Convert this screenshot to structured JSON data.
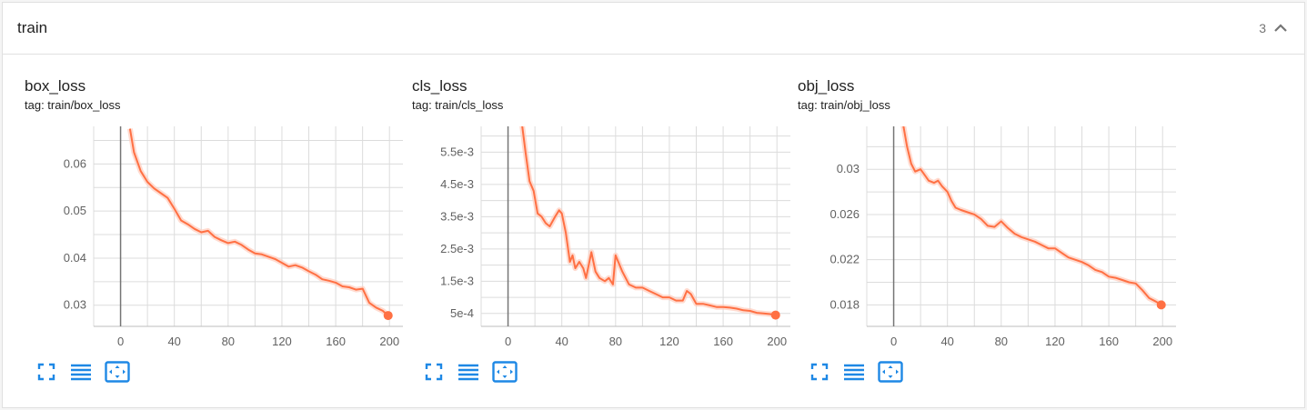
{
  "panel": {
    "title": "train",
    "count": "3"
  },
  "colors": {
    "line": "#ff7043",
    "smooth_band": "#ffccbc",
    "grid": "#dcdcdc",
    "axis": "#757575",
    "icon": "#1e88e5"
  },
  "icons": {
    "fit": "fit-domain-icon",
    "lines": "toggle-lines-icon",
    "expand": "expand-icon",
    "collapse": "chevron-up-icon"
  },
  "chart_data": [
    {
      "type": "line",
      "title": "box_loss",
      "tag": "tag: train/box_loss",
      "xlim": [
        -20,
        210
      ],
      "ylim": [
        0.0255,
        0.068
      ],
      "xticks": [
        0,
        40,
        80,
        120,
        160,
        200
      ],
      "yticks": [
        0.03,
        0.04,
        0.05,
        0.06
      ],
      "ytick_labels": [
        "0.03",
        "0.04",
        "0.05",
        "0.06"
      ],
      "x": [
        7,
        10,
        15,
        20,
        25,
        30,
        35,
        40,
        45,
        50,
        55,
        60,
        65,
        70,
        75,
        80,
        85,
        90,
        95,
        100,
        105,
        110,
        115,
        120,
        125,
        130,
        135,
        140,
        145,
        150,
        155,
        160,
        165,
        170,
        175,
        180,
        185,
        190,
        195,
        199
      ],
      "y": [
        0.0675,
        0.0625,
        0.0585,
        0.0562,
        0.0548,
        0.0538,
        0.0528,
        0.0505,
        0.048,
        0.0472,
        0.0462,
        0.0455,
        0.0458,
        0.0445,
        0.0438,
        0.0432,
        0.0435,
        0.0428,
        0.0418,
        0.041,
        0.0408,
        0.0403,
        0.0398,
        0.039,
        0.0382,
        0.0385,
        0.038,
        0.0372,
        0.0365,
        0.0355,
        0.0352,
        0.0348,
        0.034,
        0.0338,
        0.0333,
        0.0335,
        0.0305,
        0.0295,
        0.0288,
        0.0278
      ]
    },
    {
      "type": "line",
      "title": "cls_loss",
      "tag": "tag: train/cls_loss",
      "xlim": [
        -20,
        210
      ],
      "ylim": [
        0.0001,
        0.0063
      ],
      "xticks": [
        0,
        40,
        80,
        120,
        160,
        200
      ],
      "yticks": [
        0.0005,
        0.0015,
        0.0025,
        0.0035,
        0.0045,
        0.0055
      ],
      "ytick_labels": [
        "5e-4",
        "1.5e-3",
        "2.5e-3",
        "3.5e-3",
        "4.5e-3",
        "5.5e-3"
      ],
      "x": [
        10,
        13,
        16,
        19,
        22,
        25,
        28,
        31,
        35,
        38,
        40,
        43,
        46,
        48,
        50,
        53,
        56,
        58,
        62,
        65,
        68,
        72,
        75,
        78,
        80,
        85,
        90,
        95,
        100,
        105,
        110,
        115,
        120,
        125,
        130,
        133,
        136,
        140,
        145,
        150,
        155,
        160,
        165,
        170,
        175,
        180,
        185,
        190,
        195,
        199
      ],
      "y": [
        0.0065,
        0.0055,
        0.0046,
        0.0043,
        0.0036,
        0.0035,
        0.0033,
        0.0032,
        0.0035,
        0.0037,
        0.0036,
        0.003,
        0.0021,
        0.0023,
        0.0019,
        0.0021,
        0.0019,
        0.0016,
        0.0024,
        0.0018,
        0.0016,
        0.0015,
        0.0016,
        0.0014,
        0.0023,
        0.0018,
        0.0014,
        0.0013,
        0.0013,
        0.0012,
        0.0011,
        0.001,
        0.001,
        0.0009,
        0.0009,
        0.0012,
        0.0011,
        0.0008,
        0.0008,
        0.00075,
        0.0007,
        0.0007,
        0.00068,
        0.00065,
        0.0006,
        0.00058,
        0.00052,
        0.0005,
        0.00048,
        0.00045
      ]
    },
    {
      "type": "line",
      "title": "obj_loss",
      "tag": "tag: train/obj_loss",
      "xlim": [
        -20,
        210
      ],
      "ylim": [
        0.0161,
        0.0338
      ],
      "xticks": [
        0,
        40,
        80,
        120,
        160,
        200
      ],
      "yticks": [
        0.018,
        0.022,
        0.026,
        0.03
      ],
      "ytick_labels": [
        "0.018",
        "0.022",
        "0.026",
        "0.03"
      ],
      "x": [
        7,
        10,
        13,
        16,
        20,
        23,
        26,
        30,
        33,
        36,
        40,
        43,
        46,
        50,
        55,
        60,
        65,
        70,
        75,
        80,
        85,
        90,
        95,
        100,
        105,
        110,
        115,
        120,
        125,
        130,
        135,
        140,
        145,
        150,
        155,
        160,
        165,
        170,
        175,
        180,
        185,
        190,
        195,
        199
      ],
      "y": [
        0.034,
        0.032,
        0.0305,
        0.0298,
        0.03,
        0.0295,
        0.029,
        0.0288,
        0.029,
        0.0285,
        0.028,
        0.0272,
        0.0266,
        0.0264,
        0.0262,
        0.026,
        0.0256,
        0.025,
        0.0249,
        0.0254,
        0.0248,
        0.0243,
        0.024,
        0.0238,
        0.0236,
        0.0233,
        0.023,
        0.023,
        0.0226,
        0.0222,
        0.022,
        0.0218,
        0.0215,
        0.0211,
        0.0209,
        0.0205,
        0.0204,
        0.0202,
        0.02,
        0.0199,
        0.0193,
        0.0186,
        0.0183,
        0.018
      ]
    }
  ]
}
